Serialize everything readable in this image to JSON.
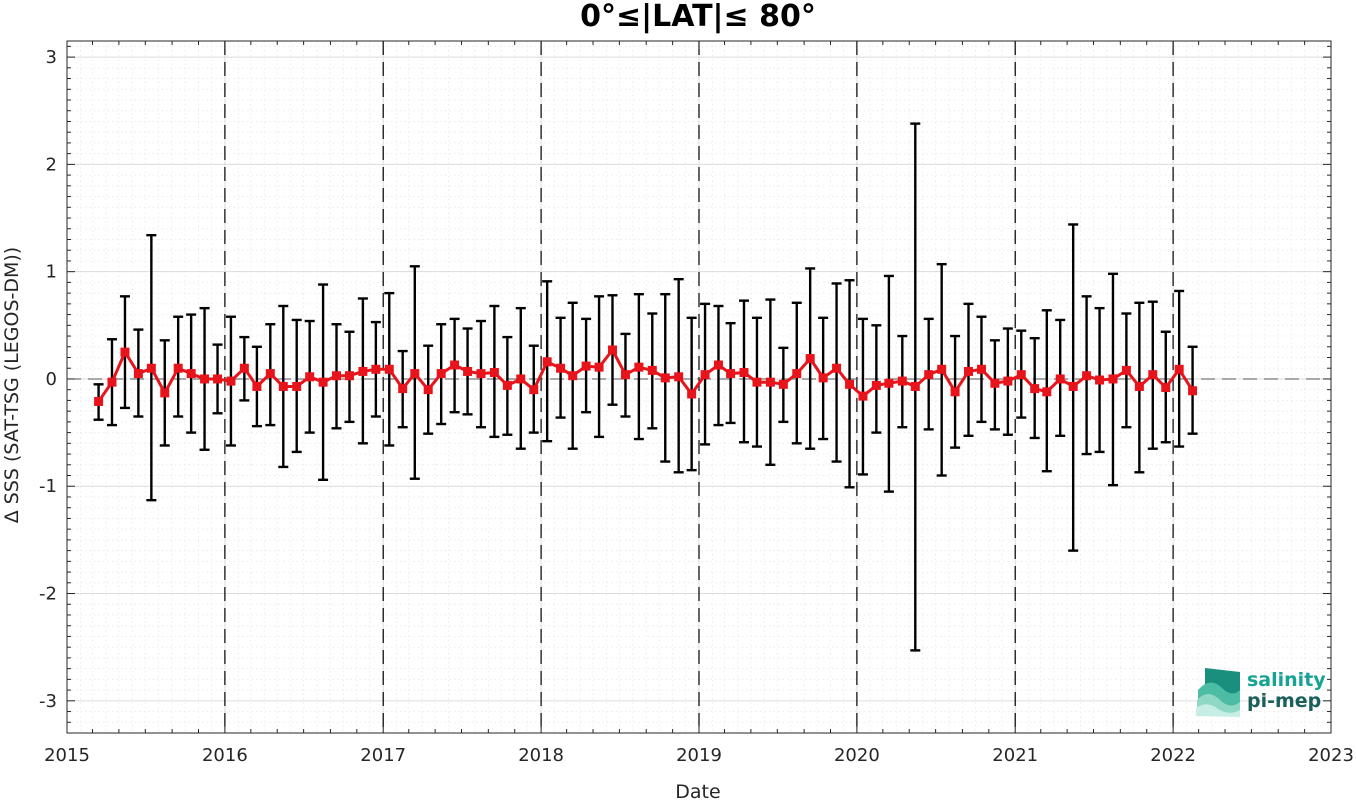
{
  "chart_data": {
    "type": "line",
    "title": "0°≤|LAT|≤ 80°",
    "xlabel": "Date",
    "ylabel": "Δ SSS (SAT-TSG (LEGOS-DM))",
    "xlim": [
      "2015-01-01",
      "2023-01-01"
    ],
    "ylim": [
      -3.3,
      3.15
    ],
    "x_ticks": [
      "2015",
      "2016",
      "2017",
      "2018",
      "2019",
      "2020",
      "2021",
      "2022",
      "2023"
    ],
    "y_ticks": [
      "3",
      "2",
      "1",
      "0",
      "-1",
      "-2",
      "-3"
    ],
    "grid": true,
    "year_separators": "dashed vertical lines at each year start",
    "zero_line": "dashed horizontal line at 0",
    "series": [
      {
        "color": "#e8141b",
        "marker": "square",
        "error_bar_color": "#000000",
        "x": [
          "2015-03-15",
          "2015-04-15",
          "2015-05-15",
          "2015-06-15",
          "2015-07-15",
          "2015-08-15",
          "2015-09-15",
          "2015-10-15",
          "2015-11-15",
          "2015-12-15",
          "2016-01-15",
          "2016-02-15",
          "2016-03-15",
          "2016-04-15",
          "2016-05-15",
          "2016-06-15",
          "2016-07-15",
          "2016-08-15",
          "2016-09-15",
          "2016-10-15",
          "2016-11-15",
          "2016-12-15",
          "2017-01-15",
          "2017-02-15",
          "2017-03-15",
          "2017-04-15",
          "2017-05-15",
          "2017-06-15",
          "2017-07-15",
          "2017-08-15",
          "2017-09-15",
          "2017-10-15",
          "2017-11-15",
          "2017-12-15",
          "2018-01-15",
          "2018-02-15",
          "2018-03-15",
          "2018-04-15",
          "2018-05-15",
          "2018-06-15",
          "2018-07-15",
          "2018-08-15",
          "2018-09-15",
          "2018-10-15",
          "2018-11-15",
          "2018-12-15",
          "2019-01-15",
          "2019-02-15",
          "2019-03-15",
          "2019-04-15",
          "2019-05-15",
          "2019-06-15",
          "2019-07-15",
          "2019-08-15",
          "2019-09-15",
          "2019-10-15",
          "2019-11-15",
          "2019-12-15",
          "2020-01-15",
          "2020-02-15",
          "2020-03-15",
          "2020-04-15",
          "2020-05-15",
          "2020-06-15",
          "2020-07-15",
          "2020-08-15",
          "2020-09-15",
          "2020-10-15",
          "2020-11-15",
          "2020-12-15",
          "2021-01-15",
          "2021-02-15",
          "2021-03-15",
          "2021-04-15",
          "2021-05-15",
          "2021-06-15",
          "2021-07-15",
          "2021-08-15",
          "2021-09-15",
          "2021-10-15",
          "2021-11-15",
          "2021-12-15",
          "2022-01-15",
          "2022-02-15"
        ],
        "values": [
          -0.21,
          -0.03,
          0.25,
          0.05,
          0.1,
          -0.13,
          0.1,
          0.05,
          0.0,
          0.0,
          -0.02,
          0.1,
          -0.07,
          0.05,
          -0.07,
          -0.07,
          0.02,
          -0.03,
          0.03,
          0.03,
          0.07,
          0.09,
          0.09,
          -0.09,
          0.05,
          -0.1,
          0.05,
          0.13,
          0.07,
          0.05,
          0.06,
          -0.06,
          0.0,
          -0.1,
          0.16,
          0.1,
          0.03,
          0.12,
          0.11,
          0.27,
          0.04,
          0.11,
          0.08,
          0.01,
          0.02,
          -0.14,
          0.04,
          0.13,
          0.05,
          0.06,
          -0.03,
          -0.03,
          -0.05,
          0.05,
          0.19,
          0.01,
          0.1,
          -0.05,
          -0.16,
          -0.06,
          -0.04,
          -0.02,
          -0.07,
          0.04,
          0.09,
          -0.12,
          0.07,
          0.09,
          -0.04,
          -0.02,
          0.04,
          -0.09,
          -0.12,
          0.0,
          -0.07,
          0.03,
          -0.01,
          0.0,
          0.08,
          -0.07,
          0.04,
          -0.08,
          0.09,
          -0.11
        ],
        "err_low": [
          -0.38,
          -0.43,
          -0.27,
          -0.35,
          -1.13,
          -0.62,
          -0.35,
          -0.5,
          -0.66,
          -0.32,
          -0.62,
          -0.2,
          -0.44,
          -0.43,
          -0.82,
          -0.68,
          -0.5,
          -0.94,
          -0.46,
          -0.4,
          -0.6,
          -0.35,
          -0.62,
          -0.45,
          -0.93,
          -0.51,
          -0.42,
          -0.31,
          -0.33,
          -0.45,
          -0.54,
          -0.52,
          -0.65,
          -0.5,
          -0.58,
          -0.36,
          -0.65,
          -0.31,
          -0.54,
          -0.24,
          -0.35,
          -0.56,
          -0.46,
          -0.77,
          -0.87,
          -0.85,
          -0.61,
          -0.43,
          -0.41,
          -0.59,
          -0.63,
          -0.8,
          -0.4,
          -0.6,
          -0.65,
          -0.56,
          -0.77,
          -1.01,
          -0.89,
          -0.5,
          -1.05,
          -0.45,
          -2.53,
          -0.47,
          -0.9,
          -0.64,
          -0.53,
          -0.4,
          -0.47,
          -0.52,
          -0.36,
          -0.55,
          -0.86,
          -0.53,
          -1.6,
          -0.7,
          -0.68,
          -0.99,
          -0.45,
          -0.87,
          -0.65,
          -0.59,
          -0.63,
          -0.51
        ],
        "err_high": [
          -0.05,
          0.37,
          0.77,
          0.46,
          1.34,
          0.36,
          0.58,
          0.6,
          0.66,
          0.32,
          0.58,
          0.39,
          0.3,
          0.51,
          0.68,
          0.55,
          0.54,
          0.88,
          0.51,
          0.44,
          0.75,
          0.53,
          0.8,
          0.26,
          1.05,
          0.31,
          0.51,
          0.56,
          0.47,
          0.54,
          0.68,
          0.39,
          0.66,
          0.31,
          0.91,
          0.57,
          0.71,
          0.56,
          0.77,
          0.78,
          0.42,
          0.79,
          0.61,
          0.79,
          0.93,
          0.57,
          0.7,
          0.68,
          0.52,
          0.73,
          0.57,
          0.74,
          0.29,
          0.71,
          1.03,
          0.57,
          0.89,
          0.92,
          0.56,
          0.5,
          0.96,
          0.4,
          2.38,
          0.56,
          1.07,
          0.4,
          0.7,
          0.58,
          0.36,
          0.47,
          0.45,
          0.38,
          0.64,
          0.55,
          1.44,
          0.77,
          0.66,
          0.98,
          0.61,
          0.71,
          0.72,
          0.44,
          0.82,
          0.3
        ]
      }
    ]
  },
  "logo": {
    "line1": "salinity",
    "line2": "pi-mep",
    "color": "#16a393"
  }
}
